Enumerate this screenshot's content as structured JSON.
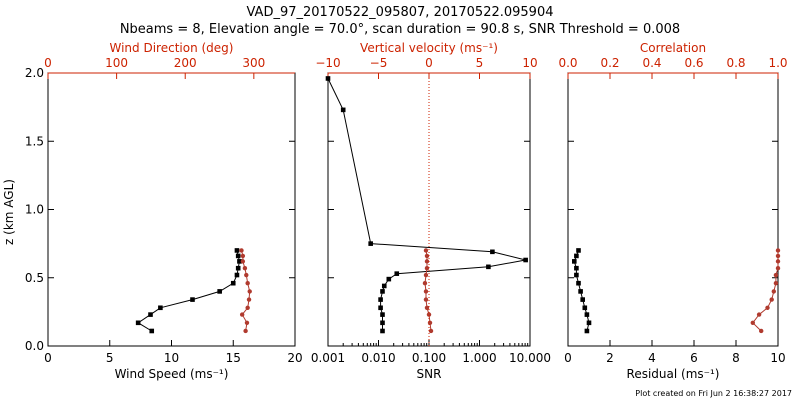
{
  "title_line1": "VAD_97_20170522_095807, 20170522.095904",
  "title_line2": "Nbeams = 8, Elevation angle = 70.0°, scan duration = 90.8 s, SNR Threshold = 0.008",
  "footer": "Plot created on Fri Jun  2 16:38:27 2017",
  "colors": {
    "axis": "#000000",
    "red": "#cc2200",
    "series_red": "#b03a2e"
  },
  "chart_data": [
    {
      "type": "line",
      "title": "",
      "ylabel": "z (km AGL)",
      "ylim": [
        0,
        2.0
      ],
      "yticks": [
        0,
        0.5,
        1.0,
        1.5,
        2.0
      ],
      "ytick_labels": [
        "0.0",
        "0.5",
        "1.0",
        "1.5",
        "2.0"
      ],
      "xlabel": "Wind Speed (ms⁻¹)",
      "xlim": [
        0,
        20
      ],
      "xticks": [
        0,
        5,
        10,
        15,
        20
      ],
      "xtick_labels": [
        "0",
        "5",
        "10",
        "15",
        "20"
      ],
      "top_xlabel": "Wind Direction (deg)",
      "top_xlim": [
        0,
        360
      ],
      "top_xticks": [
        0,
        100,
        200,
        300
      ],
      "top_xtick_labels": [
        "0",
        "100",
        "200",
        "300"
      ],
      "series": [
        {
          "name": "Wind Speed",
          "axis": "bottom",
          "color": "black",
          "x": [
            8.4,
            7.3,
            8.3,
            9.1,
            11.7,
            13.9,
            15.0,
            15.3,
            15.4,
            15.5,
            15.4,
            15.3
          ],
          "y": [
            0.11,
            0.17,
            0.23,
            0.28,
            0.34,
            0.4,
            0.46,
            0.52,
            0.57,
            0.62,
            0.66,
            0.7
          ]
        },
        {
          "name": "Wind Direction",
          "axis": "top",
          "color": "red",
          "x": [
            288,
            290,
            283,
            291,
            293,
            294,
            291,
            289,
            287,
            284,
            284,
            282
          ],
          "y": [
            0.11,
            0.17,
            0.23,
            0.28,
            0.34,
            0.4,
            0.46,
            0.52,
            0.57,
            0.62,
            0.66,
            0.7
          ]
        }
      ]
    },
    {
      "type": "line",
      "title": "",
      "ylim": [
        0,
        2.0
      ],
      "yticks": [
        0,
        0.5,
        1.0,
        1.5,
        2.0
      ],
      "xlabel": "SNR",
      "xscale": "log",
      "xlim": [
        0.001,
        10.0
      ],
      "xticks": [
        0.001,
        0.01,
        0.1,
        1.0,
        10.0
      ],
      "xtick_labels": [
        "0.001",
        "0.010",
        "0.100",
        "1.000",
        "10.000"
      ],
      "top_xlabel": "Vertical velocity (ms⁻¹)",
      "top_xlim": [
        -10,
        10
      ],
      "top_xticks": [
        -10,
        -5,
        0,
        5,
        10
      ],
      "top_xtick_labels": [
        "−10",
        "−5",
        "0",
        "5",
        "10"
      ],
      "series": [
        {
          "name": "SNR",
          "axis": "bottom",
          "color": "black",
          "x": [
            0.012,
            0.012,
            0.012,
            0.011,
            0.011,
            0.012,
            0.013,
            0.016,
            0.023,
            1.5,
            8.2,
            1.8,
            0.007,
            0.002,
            0.001
          ],
          "y": [
            0.11,
            0.17,
            0.23,
            0.28,
            0.34,
            0.4,
            0.44,
            0.49,
            0.53,
            0.58,
            0.63,
            0.69,
            0.75,
            1.73,
            1.96
          ]
        },
        {
          "name": "Vertical velocity",
          "axis": "top",
          "color": "red",
          "x": [
            0.2,
            0.1,
            0.0,
            -0.2,
            -0.3,
            -0.3,
            -0.4,
            -0.3,
            -0.2,
            -0.2,
            -0.2,
            -0.3
          ],
          "y": [
            0.11,
            0.17,
            0.23,
            0.28,
            0.34,
            0.4,
            0.46,
            0.52,
            0.57,
            0.62,
            0.66,
            0.7
          ]
        },
        {
          "name": "zero line",
          "axis": "top",
          "color": "red",
          "style": "dotted",
          "x": [
            0,
            0
          ],
          "y": [
            0,
            2.0
          ]
        }
      ]
    },
    {
      "type": "line",
      "title": "",
      "ylim": [
        0,
        2.0
      ],
      "yticks": [
        0,
        0.5,
        1.0,
        1.5,
        2.0
      ],
      "xlabel": "Residual (ms⁻¹)",
      "xlim": [
        0,
        10
      ],
      "xticks": [
        0,
        2,
        4,
        6,
        8,
        10
      ],
      "xtick_labels": [
        "0",
        "2",
        "4",
        "6",
        "8",
        "10"
      ],
      "top_xlabel": "Correlation",
      "top_xlim": [
        0.0,
        1.0
      ],
      "top_xticks": [
        0.0,
        0.2,
        0.4,
        0.6,
        0.8,
        1.0
      ],
      "top_xtick_labels": [
        "0.0",
        "0.2",
        "0.4",
        "0.6",
        "0.8",
        "1.0"
      ],
      "series": [
        {
          "name": "Residual",
          "axis": "bottom",
          "color": "black",
          "x": [
            0.9,
            1.0,
            0.9,
            0.8,
            0.7,
            0.6,
            0.5,
            0.4,
            0.4,
            0.3,
            0.4,
            0.5
          ],
          "y": [
            0.11,
            0.17,
            0.23,
            0.28,
            0.34,
            0.4,
            0.46,
            0.52,
            0.57,
            0.62,
            0.66,
            0.7
          ]
        },
        {
          "name": "Correlation",
          "axis": "top",
          "color": "red",
          "x": [
            0.92,
            0.88,
            0.91,
            0.95,
            0.97,
            0.98,
            0.99,
            0.99,
            1.0,
            1.0,
            1.0,
            1.0
          ],
          "y": [
            0.11,
            0.17,
            0.23,
            0.28,
            0.34,
            0.4,
            0.46,
            0.52,
            0.57,
            0.62,
            0.66,
            0.7
          ]
        }
      ]
    }
  ]
}
